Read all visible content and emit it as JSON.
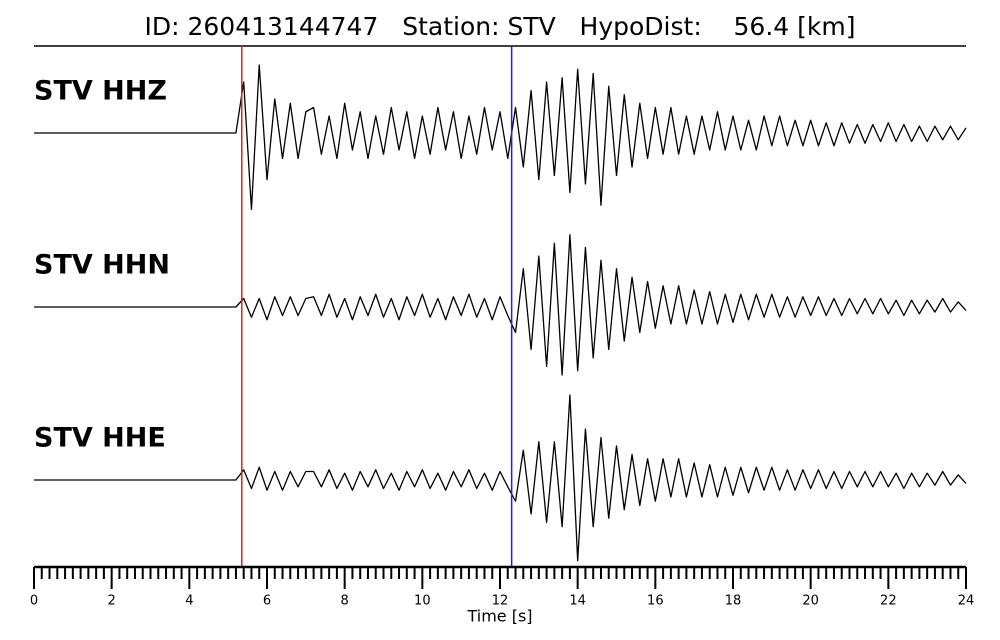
{
  "chart_data": {
    "type": "seismogram",
    "title": "ID: 260413144747   Station: STV   HypoDist:    56.4 [km]",
    "xlabel": "Time [s]",
    "xlim": [
      0,
      24
    ],
    "xticks": [
      0,
      2,
      4,
      6,
      8,
      10,
      12,
      14,
      16,
      18,
      20,
      22,
      24
    ],
    "xminorticks": [
      0.2,
      0.4,
      0.6,
      0.8,
      1,
      1.2,
      1.4,
      1.6,
      1.8,
      2.2,
      2.4,
      2.6,
      2.8,
      3,
      3.2,
      3.4,
      3.6,
      3.8,
      4.2,
      4.4,
      4.6,
      4.8,
      5,
      5.2,
      5.4,
      5.6,
      5.8,
      6.2,
      6.4,
      6.6,
      6.8,
      7,
      7.2,
      7.4,
      7.6,
      7.8,
      8.2,
      8.4,
      8.6,
      8.8,
      9,
      9.2,
      9.4,
      9.6,
      9.8,
      10.2,
      10.4,
      10.6,
      10.8,
      11,
      11.2,
      11.4,
      11.6,
      11.8,
      12.2,
      12.4,
      12.6,
      12.8,
      13,
      13.2,
      13.4,
      13.6,
      13.8,
      14.2,
      14.4,
      14.6,
      14.8,
      15,
      15.2,
      15.4,
      15.6,
      15.8,
      16.2,
      16.4,
      16.6,
      16.8,
      17,
      17.2,
      17.4,
      17.6,
      17.8,
      18.2,
      18.4,
      18.6,
      18.8,
      19,
      19.2,
      19.4,
      19.6,
      19.8,
      20.2,
      20.4,
      20.6,
      20.8,
      21,
      21.2,
      21.4,
      21.6,
      21.8,
      22.2,
      22.4,
      22.6,
      22.8,
      23,
      23.2,
      23.4,
      23.6,
      23.8
    ],
    "ylim": [
      -1,
      1
    ],
    "label_color": "#4a9a00",
    "picks": [
      {
        "value": 5.35,
        "color": "#e02020"
      },
      {
        "value": 12.3,
        "color": "#2020e0"
      }
    ],
    "x": [
      0,
      0.2,
      0.4,
      0.6,
      0.8,
      1,
      1.2,
      1.4,
      1.6,
      1.8,
      2,
      2.2,
      2.4,
      2.6,
      2.8,
      3,
      3.2,
      3.4,
      3.6,
      3.8,
      4,
      4.2,
      4.4,
      4.6,
      4.8,
      5,
      5.2,
      5.4,
      5.6,
      5.8,
      6,
      6.2,
      6.4,
      6.6,
      6.8,
      7,
      7.2,
      7.4,
      7.6,
      7.8,
      8,
      8.2,
      8.4,
      8.6,
      8.8,
      9,
      9.2,
      9.4,
      9.6,
      9.8,
      10,
      10.2,
      10.4,
      10.6,
      10.8,
      11,
      11.2,
      11.4,
      11.6,
      11.8,
      12,
      12.2,
      12.4,
      12.6,
      12.8,
      13,
      13.2,
      13.4,
      13.6,
      13.8,
      14,
      14.2,
      14.4,
      14.6,
      14.8,
      15,
      15.2,
      15.4,
      15.6,
      15.8,
      16,
      16.2,
      16.4,
      16.6,
      16.8,
      17,
      17.2,
      17.4,
      17.6,
      17.8,
      18,
      18.2,
      18.4,
      18.6,
      18.8,
      19,
      19.2,
      19.4,
      19.6,
      19.8,
      20,
      20.2,
      20.4,
      20.6,
      20.8,
      21,
      21.2,
      21.4,
      21.6,
      21.8,
      22,
      22.2,
      22.4,
      22.6,
      22.8,
      23,
      23.2,
      23.4,
      23.6,
      23.8,
      24
    ],
    "series": [
      {
        "name": "STV HHZ",
        "color": "#000000",
        "values": [
          0,
          0,
          0,
          0,
          0,
          0,
          0,
          0,
          0,
          0,
          0,
          0,
          0,
          0,
          0,
          0,
          0,
          0,
          0,
          0,
          0,
          0,
          0,
          0,
          0,
          0,
          0,
          0.6,
          -0.9,
          0.8,
          -0.55,
          0.4,
          -0.3,
          0.35,
          -0.3,
          0.25,
          0.3,
          -0.25,
          0.2,
          -0.3,
          0.35,
          -0.2,
          0.25,
          -0.3,
          0.2,
          -0.25,
          0.3,
          -0.2,
          0.25,
          -0.3,
          0.2,
          -0.25,
          0.3,
          -0.2,
          0.25,
          -0.3,
          0.2,
          -0.25,
          0.3,
          -0.2,
          0.25,
          -0.3,
          0.3,
          -0.4,
          0.5,
          -0.55,
          0.6,
          -0.5,
          0.65,
          -0.7,
          0.75,
          -0.6,
          0.7,
          -0.85,
          0.55,
          -0.5,
          0.45,
          -0.4,
          0.35,
          -0.3,
          0.3,
          -0.25,
          0.3,
          -0.25,
          0.2,
          -0.25,
          0.2,
          -0.2,
          0.25,
          -0.2,
          0.2,
          -0.2,
          0.15,
          -0.2,
          0.2,
          -0.15,
          0.2,
          -0.15,
          0.15,
          -0.15,
          0.15,
          -0.15,
          0.12,
          -0.15,
          0.12,
          -0.12,
          0.1,
          -0.12,
          0.1,
          -0.1,
          0.12,
          -0.1,
          0.1,
          -0.1,
          0.08,
          -0.1,
          0.08,
          -0.08,
          0.08,
          -0.08,
          0.06
        ]
      },
      {
        "name": "STV HHN",
        "color": "#000000",
        "values": [
          0,
          0,
          0,
          0,
          0,
          0,
          0,
          0,
          0,
          0,
          0,
          0,
          0,
          0,
          0,
          0,
          0,
          0,
          0,
          0,
          0,
          0,
          0,
          0,
          0,
          0,
          0,
          0.1,
          -0.12,
          0.1,
          -0.15,
          0.12,
          -0.1,
          0.12,
          -0.1,
          0.1,
          0.12,
          -0.1,
          0.15,
          -0.12,
          0.1,
          -0.15,
          0.12,
          -0.1,
          0.15,
          -0.12,
          0.1,
          -0.15,
          0.12,
          -0.1,
          0.15,
          -0.12,
          0.1,
          -0.15,
          0.12,
          -0.1,
          0.15,
          -0.12,
          0.1,
          -0.15,
          0.12,
          -0.1,
          -0.3,
          0.45,
          -0.5,
          0.6,
          -0.7,
          0.75,
          -0.8,
          0.85,
          -0.75,
          0.7,
          -0.6,
          0.55,
          -0.5,
          0.45,
          -0.4,
          0.35,
          -0.3,
          0.3,
          -0.25,
          0.25,
          -0.2,
          0.25,
          -0.2,
          0.2,
          -0.2,
          0.18,
          -0.2,
          0.15,
          -0.18,
          0.15,
          -0.15,
          0.15,
          -0.12,
          0.15,
          -0.12,
          0.12,
          -0.12,
          0.12,
          -0.1,
          0.12,
          -0.1,
          0.1,
          -0.1,
          0.1,
          -0.08,
          0.1,
          -0.08,
          0.1,
          -0.08,
          0.08,
          -0.1,
          0.08,
          -0.08,
          0.08,
          -0.06,
          0.1,
          -0.06,
          0.06,
          -0.04
        ]
      },
      {
        "name": "STV HHE",
        "color": "#000000",
        "values": [
          0,
          0,
          0,
          0,
          0,
          0,
          0,
          0,
          0,
          0,
          0,
          0,
          0,
          0,
          0,
          0,
          0,
          0,
          0,
          0,
          0,
          0,
          0,
          0,
          0,
          0,
          0,
          0.12,
          -0.1,
          0.15,
          -0.12,
          0.1,
          -0.12,
          0.1,
          -0.08,
          0.1,
          0.1,
          -0.08,
          0.12,
          -0.1,
          0.08,
          -0.12,
          0.1,
          -0.08,
          0.12,
          -0.1,
          0.08,
          -0.12,
          0.1,
          -0.08,
          0.12,
          -0.1,
          0.08,
          -0.12,
          0.1,
          -0.08,
          0.12,
          -0.1,
          0.08,
          -0.12,
          0.1,
          -0.08,
          -0.25,
          0.35,
          -0.4,
          0.45,
          -0.5,
          0.45,
          -0.55,
          1.0,
          -0.95,
          0.6,
          -0.55,
          0.5,
          -0.45,
          0.4,
          -0.35,
          0.3,
          -0.3,
          0.25,
          -0.25,
          0.25,
          -0.2,
          0.25,
          -0.2,
          0.2,
          -0.2,
          0.18,
          -0.2,
          0.15,
          -0.18,
          0.15,
          -0.15,
          0.15,
          -0.12,
          0.15,
          -0.12,
          0.12,
          -0.12,
          0.12,
          -0.1,
          0.12,
          -0.1,
          0.1,
          -0.1,
          0.1,
          -0.08,
          0.1,
          -0.08,
          0.1,
          -0.08,
          0.08,
          -0.1,
          0.08,
          -0.08,
          0.08,
          -0.06,
          0.1,
          -0.06,
          0.06,
          -0.04
        ]
      }
    ]
  }
}
